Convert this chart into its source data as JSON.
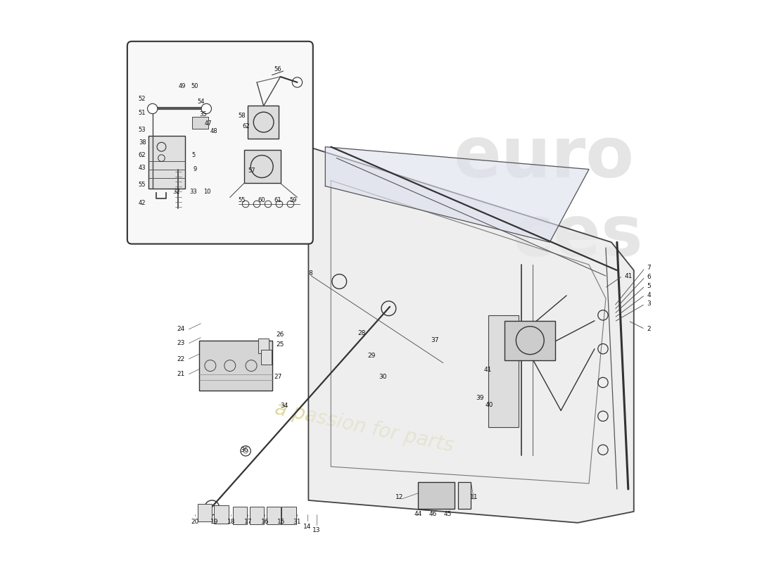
{
  "background_color": "#ffffff",
  "watermark_text": "a passion for parts",
  "watermark_color": "#c8b84a",
  "watermark_alpha": 0.5,
  "fig_width": 11.0,
  "fig_height": 8.0
}
